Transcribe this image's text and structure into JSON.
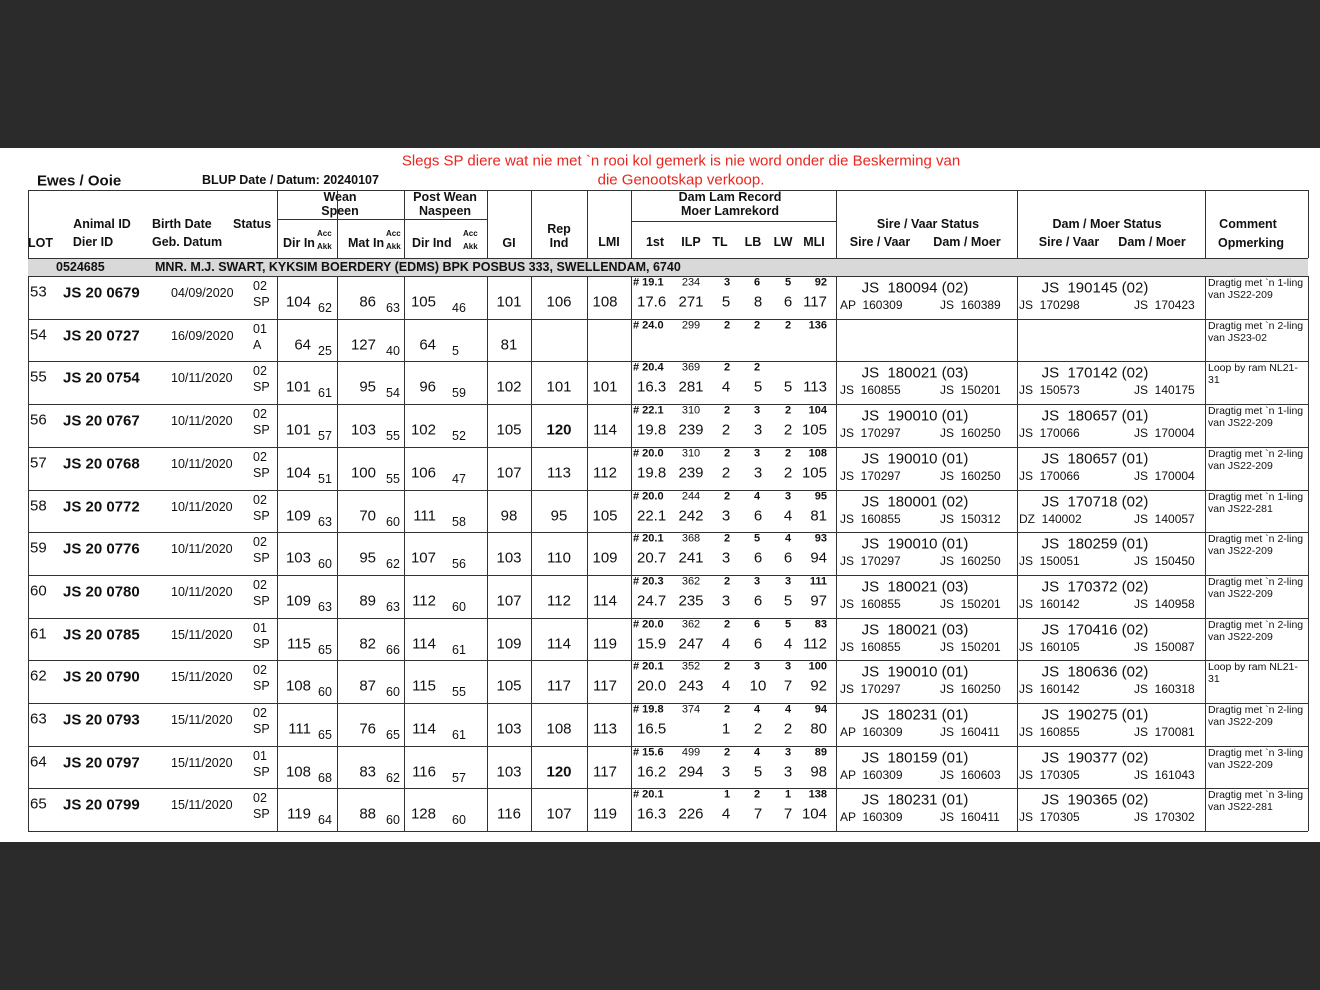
{
  "notice": [
    "Slegs SP diere wat nie met `n rooi kol gemerk is nie word onder die Beskerming van",
    "die Genootskap verkoop."
  ],
  "title": "Ewes / Ooie",
  "blup": "BLUP Date / Datum: 20240107",
  "headers": [
    "LOT",
    "Animal ID",
    "Dier ID",
    "Birth Date",
    "Geb. Datum",
    "Status",
    "Wean",
    "Speen",
    "Dir In",
    "Acc",
    "Akk",
    "Mat In",
    "Acc",
    "Akk",
    "Post Wean",
    "Naspeen",
    "Dir Ind",
    "Acc",
    "Akk",
    "GI",
    "Rep",
    "Ind",
    "LMI",
    "Dam Lam Record",
    "Moer Lamrekord",
    "1st",
    "ILP",
    "TL",
    "LB",
    "LW",
    "MLI",
    "Sire / Vaar Status",
    "Sire / Vaar",
    "Dam / Moer",
    "Dam / Moer Status",
    "Sire / Vaar",
    "Dam / Moer",
    "Comment",
    "Opmerking"
  ],
  "breeder": {
    "code": "0524685",
    "name": "MNR. M.J. SWART, KYKSIM BOERDERY (EDMS) BPK POSBUS 333, SWELLENDAM, 6740"
  },
  "rows": [
    {
      "lot": "53",
      "id": "JS 20 0679",
      "birth": "04/09/2020",
      "status": [
        "02",
        "SP"
      ],
      "dir": "104",
      "dir_acc": "62",
      "mat": "86",
      "mat_acc": "63",
      "pw": "105",
      "pw_acc": "46",
      "gi": "101",
      "rep": "106",
      "lmi": "108",
      "dam_record": {
        "top": {
          "first": "# 19.1",
          "ilp": "234",
          "tl": "3",
          "lb": "6",
          "lw": "5",
          "mli": "92"
        },
        "bottom": {
          "first": "17.6",
          "ilp": "271",
          "tl": "5",
          "lb": "8",
          "lw": "6",
          "mli": "117"
        }
      },
      "sire": {
        "status": "JS  180094 (02)",
        "vaar": "AP  160309",
        "moer": "JS  160389"
      },
      "dam": {
        "status": "JS  190145 (02)",
        "vaar": "JS  170298",
        "moer": "JS  170423"
      },
      "comment": "Dragtig met `n 1-ling van JS22-209"
    },
    {
      "lot": "54",
      "id": "JS 20 0727",
      "birth": "16/09/2020",
      "status": [
        "01",
        "A"
      ],
      "dir": "64",
      "dir_acc": "25",
      "mat": "127",
      "mat_acc": "40",
      "pw": "64",
      "pw_acc": "5",
      "gi": "81",
      "dam_record": {
        "top": {
          "first": "# 24.0",
          "ilp": "299",
          "tl": "2",
          "lb": "2",
          "lw": "2",
          "mli": "136"
        }
      },
      "comment": "Dragtig met `n 2-ling van JS23-02"
    },
    {
      "lot": "55",
      "id": "JS 20 0754",
      "birth": "10/11/2020",
      "status": [
        "02",
        "SP"
      ],
      "dir": "101",
      "dir_acc": "61",
      "mat": "95",
      "mat_acc": "54",
      "pw": "96",
      "pw_acc": "59",
      "gi": "102",
      "rep": "101",
      "lmi": "101",
      "dam_record": {
        "top": {
          "first": "# 20.4",
          "ilp": "369",
          "tl": "2",
          "lb": "2"
        },
        "bottom": {
          "first": "16.3",
          "ilp": "281",
          "tl": "4",
          "lb": "5",
          "lw": "5",
          "mli": "113"
        }
      },
      "sire": {
        "status": "JS  180021 (03)",
        "vaar": "JS  160855",
        "moer": "JS  150201"
      },
      "dam": {
        "status": "JS  170142 (02)",
        "vaar": "JS  150573",
        "moer": "JS  140175"
      },
      "comment": "Loop by ram NL21-31"
    },
    {
      "lot": "56",
      "id": "JS 20 0767",
      "birth": "10/11/2020",
      "status": [
        "02",
        "SP"
      ],
      "dir": "101",
      "dir_acc": "57",
      "mat": "103",
      "mat_acc": "55",
      "pw": "102",
      "pw_acc": "52",
      "gi": "105",
      "rep": "120",
      "rep_bold": true,
      "lmi": "114",
      "dam_record": {
        "top": {
          "first": "# 22.1",
          "ilp": "310",
          "tl": "2",
          "lb": "3",
          "lw": "2",
          "mli": "104"
        },
        "bottom": {
          "first": "19.8",
          "ilp": "239",
          "tl": "2",
          "lb": "3",
          "lw": "2",
          "mli": "105"
        }
      },
      "sire": {
        "status": "JS  190010 (01)",
        "vaar": "JS  170297",
        "moer": "JS  160250"
      },
      "dam": {
        "status": "JS  180657 (01)",
        "vaar": "JS  170066",
        "moer": "JS  170004"
      },
      "comment": "Dragtig met `n 1-ling van JS22-209"
    },
    {
      "lot": "57",
      "id": "JS 20 0768",
      "birth": "10/11/2020",
      "status": [
        "02",
        "SP"
      ],
      "dir": "104",
      "dir_acc": "51",
      "mat": "100",
      "mat_acc": "55",
      "pw": "106",
      "pw_acc": "47",
      "gi": "107",
      "rep": "113",
      "lmi": "112",
      "dam_record": {
        "top": {
          "first": "# 20.0",
          "ilp": "310",
          "tl": "2",
          "lb": "3",
          "lw": "2",
          "mli": "108"
        },
        "bottom": {
          "first": "19.8",
          "ilp": "239",
          "tl": "2",
          "lb": "3",
          "lw": "2",
          "mli": "105"
        }
      },
      "sire": {
        "status": "JS  190010 (01)",
        "vaar": "JS  170297",
        "moer": "JS  160250"
      },
      "dam": {
        "status": "JS  180657 (01)",
        "vaar": "JS  170066",
        "moer": "JS  170004"
      },
      "comment": "Dragtig met `n 2-ling van JS22-209"
    },
    {
      "lot": "58",
      "id": "JS 20 0772",
      "birth": "10/11/2020",
      "status": [
        "02",
        "SP"
      ],
      "dir": "109",
      "dir_acc": "63",
      "mat": "70",
      "mat_acc": "60",
      "pw": "111",
      "pw_acc": "58",
      "gi": "98",
      "rep": "95",
      "lmi": "105",
      "dam_record": {
        "top": {
          "first": "# 20.0",
          "ilp": "244",
          "tl": "2",
          "lb": "4",
          "lw": "3",
          "mli": "95"
        },
        "bottom": {
          "first": "22.1",
          "ilp": "242",
          "tl": "3",
          "lb": "6",
          "lw": "4",
          "mli": "81"
        }
      },
      "sire": {
        "status": "JS  180001 (02)",
        "vaar": "JS  160855",
        "moer": "JS  150312"
      },
      "dam": {
        "status": "JS  170718 (02)",
        "vaar": "DZ  140002",
        "moer": "JS  140057"
      },
      "comment": "Dragtig met `n 1-ling van JS22-281"
    },
    {
      "lot": "59",
      "id": "JS 20 0776",
      "birth": "10/11/2020",
      "status": [
        "02",
        "SP"
      ],
      "dir": "103",
      "dir_acc": "60",
      "mat": "95",
      "mat_acc": "62",
      "pw": "107",
      "pw_acc": "56",
      "gi": "103",
      "rep": "110",
      "lmi": "109",
      "dam_record": {
        "top": {
          "first": "# 20.1",
          "ilp": "368",
          "tl": "2",
          "lb": "5",
          "lw": "4",
          "mli": "93"
        },
        "bottom": {
          "first": "20.7",
          "ilp": "241",
          "tl": "3",
          "lb": "6",
          "lw": "6",
          "mli": "94"
        }
      },
      "sire": {
        "status": "JS  190010 (01)",
        "vaar": "JS  170297",
        "moer": "JS  160250"
      },
      "dam": {
        "status": "JS  180259 (01)",
        "vaar": "JS  150051",
        "moer": "JS  150450"
      },
      "comment": "Dragtig met `n 2-ling van JS22-209"
    },
    {
      "lot": "60",
      "id": "JS 20 0780",
      "birth": "10/11/2020",
      "status": [
        "02",
        "SP"
      ],
      "dir": "109",
      "dir_acc": "63",
      "mat": "89",
      "mat_acc": "63",
      "pw": "112",
      "pw_acc": "60",
      "gi": "107",
      "rep": "112",
      "lmi": "114",
      "dam_record": {
        "top": {
          "first": "# 20.3",
          "ilp": "362",
          "tl": "2",
          "lb": "3",
          "lw": "3",
          "mli": "111"
        },
        "bottom": {
          "first": "24.7",
          "ilp": "235",
          "tl": "3",
          "lb": "6",
          "lw": "5",
          "mli": "97"
        }
      },
      "sire": {
        "status": "JS  180021 (03)",
        "vaar": "JS  160855",
        "moer": "JS  150201"
      },
      "dam": {
        "status": "JS  170372 (02)",
        "vaar": "JS  160142",
        "moer": "JS  140958"
      },
      "comment": "Dragtig met `n 2-ling van JS22-209"
    },
    {
      "lot": "61",
      "id": "JS 20 0785",
      "birth": "15/11/2020",
      "status": [
        "01",
        "SP"
      ],
      "dir": "115",
      "dir_acc": "65",
      "mat": "82",
      "mat_acc": "66",
      "pw": "114",
      "pw_acc": "61",
      "gi": "109",
      "rep": "114",
      "lmi": "119",
      "dam_record": {
        "top": {
          "first": "# 20.0",
          "ilp": "362",
          "tl": "2",
          "lb": "6",
          "lw": "5",
          "mli": "83"
        },
        "bottom": {
          "first": "15.9",
          "ilp": "247",
          "tl": "4",
          "lb": "6",
          "lw": "4",
          "mli": "112"
        }
      },
      "sire": {
        "status": "JS  180021 (03)",
        "vaar": "JS  160855",
        "moer": "JS  150201"
      },
      "dam": {
        "status": "JS  170416 (02)",
        "vaar": "JS  160105",
        "moer": "JS  150087"
      },
      "comment": "Dragtig met `n 2-ling van JS22-209"
    },
    {
      "lot": "62",
      "id": "JS 20 0790",
      "birth": "15/11/2020",
      "status": [
        "02",
        "SP"
      ],
      "dir": "108",
      "dir_acc": "60",
      "mat": "87",
      "mat_acc": "60",
      "pw": "115",
      "pw_acc": "55",
      "gi": "105",
      "rep": "117",
      "lmi": "117",
      "dam_record": {
        "top": {
          "first": "# 20.1",
          "ilp": "352",
          "tl": "2",
          "lb": "3",
          "lw": "3",
          "mli": "100"
        },
        "bottom": {
          "first": "20.0",
          "ilp": "243",
          "tl": "4",
          "lb": "10",
          "lw": "7",
          "mli": "92"
        }
      },
      "sire": {
        "status": "JS  190010 (01)",
        "vaar": "JS  170297",
        "moer": "JS  160250"
      },
      "dam": {
        "status": "JS  180636 (02)",
        "vaar": "JS  160142",
        "moer": "JS  160318"
      },
      "comment": "Loop by ram NL21-31"
    },
    {
      "lot": "63",
      "id": "JS 20 0793",
      "birth": "15/11/2020",
      "status": [
        "02",
        "SP"
      ],
      "dir": "111",
      "dir_acc": "65",
      "mat": "76",
      "mat_acc": "65",
      "pw": "114",
      "pw_acc": "61",
      "gi": "103",
      "rep": "108",
      "lmi": "113",
      "dam_record": {
        "top": {
          "first": "# 19.8",
          "ilp": "374",
          "tl": "2",
          "lb": "4",
          "lw": "4",
          "mli": "94"
        },
        "bottom": {
          "first": "16.5",
          "tl": "1",
          "lb": "2",
          "lw": "2",
          "mli": "80"
        }
      },
      "sire": {
        "status": "JS  180231 (01)",
        "vaar": "AP  160309",
        "moer": "JS  160411"
      },
      "dam": {
        "status": "JS  190275 (01)",
        "vaar": "JS  160855",
        "moer": "JS  170081"
      },
      "comment": "Dragtig met `n 2-ling van JS22-209"
    },
    {
      "lot": "64",
      "id": "JS 20 0797",
      "birth": "15/11/2020",
      "status": [
        "01",
        "SP"
      ],
      "dir": "108",
      "dir_acc": "68",
      "mat": "83",
      "mat_acc": "62",
      "pw": "116",
      "pw_acc": "57",
      "gi": "103",
      "rep": "120",
      "rep_bold": true,
      "lmi": "117",
      "dam_record": {
        "top": {
          "first": "# 15.6",
          "ilp": "499",
          "tl": "2",
          "lb": "4",
          "lw": "3",
          "mli": "89"
        },
        "bottom": {
          "first": "16.2",
          "ilp": "294",
          "tl": "3",
          "lb": "5",
          "lw": "3",
          "mli": "98"
        }
      },
      "sire": {
        "status": "JS  180159 (01)",
        "vaar": "AP  160309",
        "moer": "JS  160603"
      },
      "dam": {
        "status": "JS  190377 (02)",
        "vaar": "JS  170305",
        "moer": "JS  161043"
      },
      "comment": "Dragtig met `n 3-ling van JS22-209"
    },
    {
      "lot": "65",
      "id": "JS 20 0799",
      "birth": "15/11/2020",
      "status": [
        "02",
        "SP"
      ],
      "dir": "119",
      "dir_acc": "64",
      "mat": "88",
      "mat_acc": "60",
      "pw": "128",
      "pw_acc": "60",
      "gi": "116",
      "rep": "107",
      "lmi": "119",
      "dam_record": {
        "top": {
          "first": "# 20.1",
          "tl": "1",
          "lb": "2",
          "lw": "1",
          "mli": "138"
        },
        "bottom": {
          "first": "16.3",
          "ilp": "226",
          "tl": "4",
          "lb": "7",
          "lw": "7",
          "mli": "104"
        }
      },
      "sire": {
        "status": "JS  180231 (01)",
        "vaar": "AP  160309",
        "moer": "JS  160411"
      },
      "dam": {
        "status": "JS  190365 (02)",
        "vaar": "JS  170305",
        "moer": "JS  170302"
      },
      "comment": "Dragtig met `n 3-ling van JS22-281"
    }
  ]
}
